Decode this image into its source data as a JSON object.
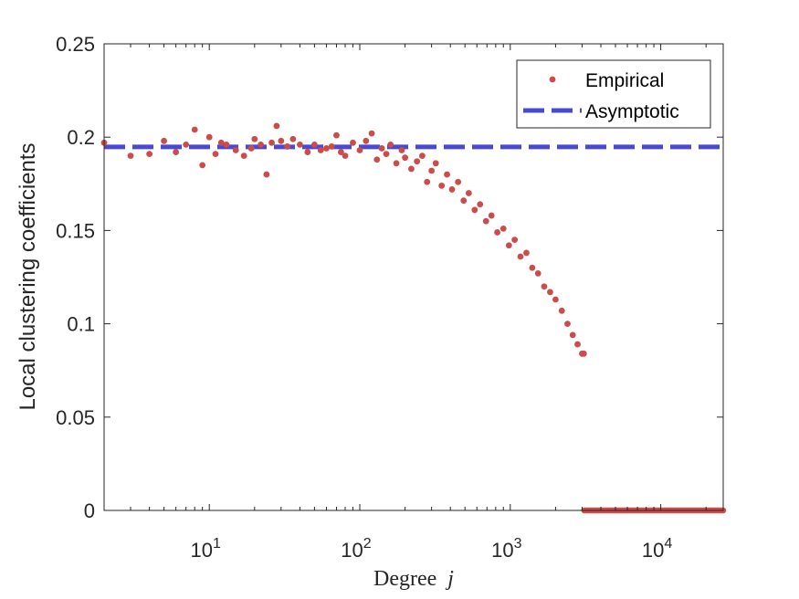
{
  "chart_data": {
    "type": "scatter",
    "xscale": "log",
    "xlim": [
      2,
      26000
    ],
    "ylim": [
      0,
      0.25
    ],
    "xlabel": "Degree",
    "xlabel_var": "j",
    "ylabel": "Local clustering coefficients",
    "yticks": [
      {
        "value": 0,
        "label": "0"
      },
      {
        "value": 0.05,
        "label": "0.05"
      },
      {
        "value": 0.1,
        "label": "0.1"
      },
      {
        "value": 0.15,
        "label": "0.15"
      },
      {
        "value": 0.2,
        "label": "0.2"
      },
      {
        "value": 0.25,
        "label": "0.25"
      }
    ],
    "xticks": [
      {
        "value": 10,
        "base": "10",
        "exp": "1"
      },
      {
        "value": 100,
        "base": "10",
        "exp": "2"
      },
      {
        "value": 1000,
        "base": "10",
        "exp": "3"
      },
      {
        "value": 10000,
        "base": "10",
        "exp": "4"
      }
    ],
    "legend": {
      "position": "top-right",
      "entries": [
        {
          "label": "Empirical",
          "style": "dots",
          "color": "#CC4C4C"
        },
        {
          "label": "Asymptotic",
          "style": "dashed-line",
          "color": "#4A4AD0"
        }
      ]
    },
    "series": [
      {
        "name": "Empirical",
        "kind": "scatter",
        "color": "#CC4C4C",
        "points": [
          [
            2,
            0.197
          ],
          [
            3,
            0.19
          ],
          [
            4,
            0.191
          ],
          [
            5,
            0.198
          ],
          [
            6,
            0.192
          ],
          [
            7,
            0.196
          ],
          [
            8,
            0.204
          ],
          [
            9,
            0.185
          ],
          [
            10,
            0.2
          ],
          [
            11,
            0.191
          ],
          [
            12,
            0.197
          ],
          [
            13,
            0.196
          ],
          [
            15,
            0.193
          ],
          [
            17,
            0.19
          ],
          [
            19,
            0.194
          ],
          [
            20,
            0.199
          ],
          [
            22,
            0.196
          ],
          [
            24,
            0.18
          ],
          [
            26,
            0.197
          ],
          [
            28,
            0.206
          ],
          [
            30,
            0.198
          ],
          [
            33,
            0.195
          ],
          [
            36,
            0.199
          ],
          [
            40,
            0.196
          ],
          [
            45,
            0.192
          ],
          [
            50,
            0.196
          ],
          [
            55,
            0.193
          ],
          [
            60,
            0.194
          ],
          [
            65,
            0.195
          ],
          [
            70,
            0.201
          ],
          [
            75,
            0.192
          ],
          [
            80,
            0.19
          ],
          [
            90,
            0.197
          ],
          [
            100,
            0.193
          ],
          [
            110,
            0.198
          ],
          [
            120,
            0.202
          ],
          [
            130,
            0.188
          ],
          [
            140,
            0.194
          ],
          [
            150,
            0.191
          ],
          [
            160,
            0.196
          ],
          [
            175,
            0.186
          ],
          [
            190,
            0.193
          ],
          [
            200,
            0.189
          ],
          [
            220,
            0.183
          ],
          [
            240,
            0.187
          ],
          [
            260,
            0.19
          ],
          [
            280,
            0.176
          ],
          [
            300,
            0.182
          ],
          [
            320,
            0.186
          ],
          [
            350,
            0.174
          ],
          [
            380,
            0.18
          ],
          [
            410,
            0.172
          ],
          [
            450,
            0.176
          ],
          [
            490,
            0.166
          ],
          [
            530,
            0.17
          ],
          [
            580,
            0.161
          ],
          [
            630,
            0.164
          ],
          [
            690,
            0.155
          ],
          [
            750,
            0.158
          ],
          [
            820,
            0.149
          ],
          [
            900,
            0.151
          ],
          [
            980,
            0.142
          ],
          [
            1070,
            0.145
          ],
          [
            1170,
            0.136
          ],
          [
            1280,
            0.138
          ],
          [
            1400,
            0.13
          ],
          [
            1530,
            0.127
          ],
          [
            1680,
            0.12
          ],
          [
            1840,
            0.117
          ],
          [
            2000,
            0.113
          ],
          [
            2200,
            0.107
          ],
          [
            2400,
            0.1
          ],
          [
            2600,
            0.094
          ],
          [
            2800,
            0.089
          ],
          [
            3000,
            0.084
          ],
          [
            3080,
            0.084
          ]
        ]
      },
      {
        "name": "Empirical (zero segment)",
        "kind": "zero-run",
        "color": "#CC4C4C",
        "x_start": 3100,
        "x_end": 26000,
        "y": 0
      },
      {
        "name": "Asymptotic",
        "kind": "hline",
        "color": "#4A4AD0",
        "y": 0.1948
      }
    ]
  }
}
